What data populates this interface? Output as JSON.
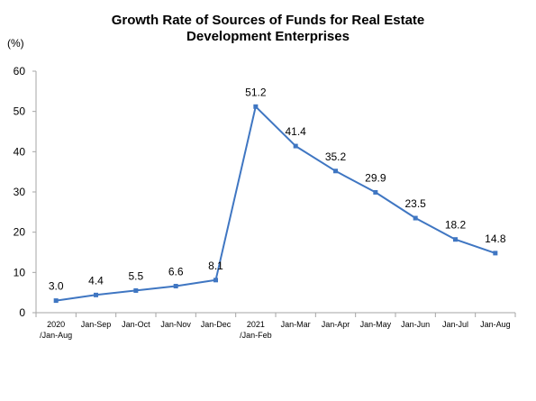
{
  "chart_data": {
    "type": "line",
    "title_lines": [
      "Growth Rate of Sources of Funds for Real Estate",
      "Development Enterprises"
    ],
    "ylabel": "(%)",
    "xlabel": "",
    "ylim": [
      0,
      60
    ],
    "yticks": [
      "0",
      "10",
      "20",
      "30",
      "40",
      "50",
      "60"
    ],
    "categories": [
      [
        "2020",
        "/Jan-Aug"
      ],
      [
        "Jan-Sep"
      ],
      [
        "Jan-Oct"
      ],
      [
        "Jan-Nov"
      ],
      [
        "Jan-Dec"
      ],
      [
        "2021",
        "/Jan-Feb"
      ],
      [
        "Jan-Mar"
      ],
      [
        "Jan-Apr"
      ],
      [
        "Jan-May"
      ],
      [
        "Jan-Jun"
      ],
      [
        "Jan-Jul"
      ],
      [
        "Jan-Aug"
      ]
    ],
    "series": [
      {
        "values": [
          3.0,
          4.4,
          5.5,
          6.6,
          8.1,
          51.2,
          41.4,
          35.2,
          29.9,
          23.5,
          18.2,
          14.8
        ],
        "labels": [
          "3.0",
          "4.4",
          "5.5",
          "6.6",
          "8.1",
          "51.2",
          "41.4",
          "35.2",
          "29.9",
          "23.5",
          "18.2",
          "14.8"
        ],
        "color": "#3f76c2"
      }
    ],
    "grid": false,
    "legend": "none",
    "axis_color": "#a6a6a6"
  }
}
